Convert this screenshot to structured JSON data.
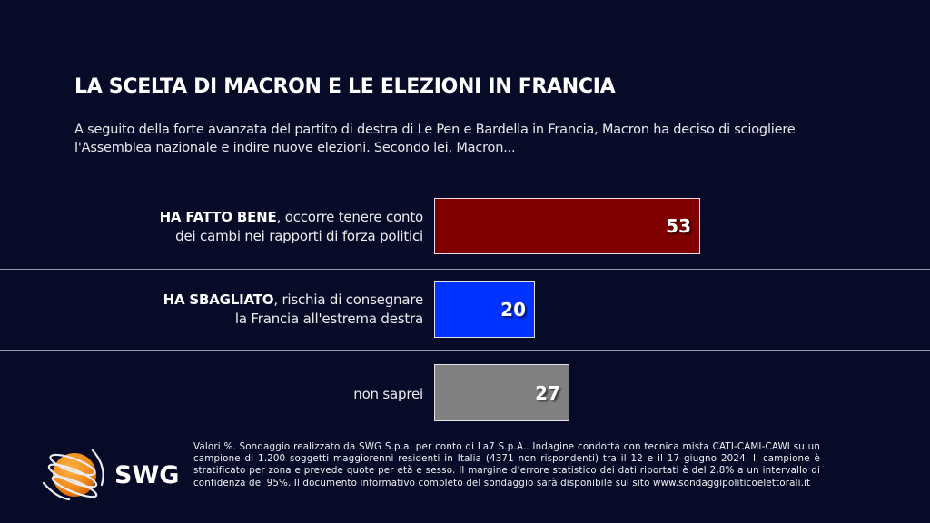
{
  "header": {
    "title": "LA SCELTA DI MACRON E LE ELEZIONI IN FRANCIA",
    "subtitle": "A seguito della forte avanzata del partito di destra di Le Pen e Bardella in Francia, Macron ha deciso di sciogliere l'Assemblea nazionale e indire nuove elezioni. Secondo lei, Macron..."
  },
  "rows": [
    {
      "bold": "HA FATTO BENE",
      "rest_line1": ", occorre tenere conto",
      "line2": "dei cambi nei rapporti di forza politici",
      "value": "53",
      "color": "#800000"
    },
    {
      "bold": "HA SBAGLIATO",
      "rest_line1": ", rischia di consegnare",
      "line2": "la Francia all'estrema destra",
      "value": "20",
      "color": "#0033ff"
    },
    {
      "bold": "",
      "rest_line1": "non saprei",
      "line2": "",
      "value": "27",
      "color": "#808080"
    }
  ],
  "chart_data": {
    "type": "bar",
    "orientation": "horizontal",
    "title": "LA SCELTA DI MACRON E LE ELEZIONI IN FRANCIA",
    "subtitle": "A seguito della forte avanzata del partito di destra di Le Pen e Bardella in Francia, Macron ha deciso di sciogliere l'Assemblea nazionale e indire nuove elezioni. Secondo lei, Macron...",
    "categories": [
      "HA FATTO BENE, occorre tenere conto dei cambi nei rapporti di forza politici",
      "HA SBAGLIATO, rischia di consegnare la Francia all'estrema destra",
      "non saprei"
    ],
    "values": [
      53,
      20,
      27
    ],
    "colors": [
      "#800000",
      "#0033ff",
      "#808080"
    ],
    "unit": "%",
    "xlabel": "",
    "ylabel": "",
    "grid": false,
    "legend": "none"
  },
  "logo": {
    "text": "SWG",
    "icon": "globe-icon",
    "colors": {
      "globe": "#f28a1c",
      "rings": "#e8e8ee"
    }
  },
  "footnote": "Valori %. Sondaggio realizzato da SWG S.p.a. per conto di La7 S.p.A.. Indagine condotta con tecnica mista CATI-CAMI-CAWI su un campione di 1.200 soggetti maggiorenni residenti in Italia (4371 non rispondenti) tra il 12 e il 17 giugno 2024. Il campione è stratificato per zona e prevede quote per età e sesso. Il margine d’errore statistico dei dati riportati è del 2,8% a un intervallo di confidenza del 95%. Il documento informativo completo del sondaggio sarà disponibile sul sito www.sondaggipoliticoelettorali.it"
}
